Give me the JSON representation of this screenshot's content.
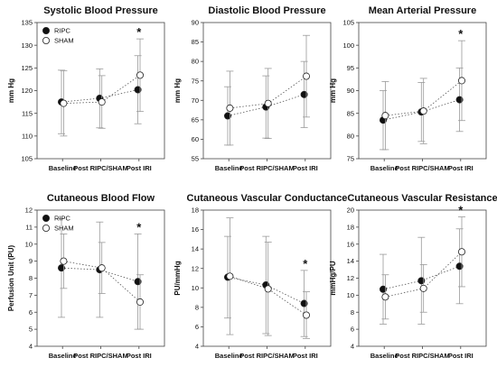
{
  "figure": {
    "categories": [
      "Baseline",
      "Post RIPC/SHAM",
      "Post IRI"
    ],
    "colors": {
      "RIPC": "#111111",
      "SHAM": "#ffffff",
      "errorbar": "#9a9a9a",
      "axis": "#444444"
    }
  },
  "chart_data": [
    {
      "type": "scatter",
      "title": "Systolic Blood Pressure",
      "xlabel": "",
      "ylabel": "mm Hg",
      "categories": [
        "Baseline",
        "Post RIPC/SHAM",
        "Post IRI"
      ],
      "ylim": [
        105,
        135
      ],
      "yticks": [
        105,
        110,
        115,
        120,
        125,
        130,
        135
      ],
      "legend": {
        "position": "top-left",
        "entries": [
          "RIPC",
          "SHAM"
        ]
      },
      "series": [
        {
          "name": "RIPC",
          "marker": "filled",
          "values": [
            117.5,
            118.3,
            120.2
          ],
          "errors": [
            7.0,
            6.5,
            7.5
          ]
        },
        {
          "name": "SHAM",
          "marker": "open",
          "values": [
            117.2,
            117.5,
            123.4
          ],
          "errors": [
            7.2,
            5.8,
            8.0
          ]
        }
      ],
      "annotations": [
        {
          "text": "*",
          "category": "Post IRI"
        }
      ]
    },
    {
      "type": "scatter",
      "title": "Diastolic Blood Pressure",
      "xlabel": "",
      "ylabel": "mm Hg",
      "categories": [
        "Baseline",
        "Post RIPC/SHAM",
        "Post IRI"
      ],
      "ylim": [
        55,
        90
      ],
      "yticks": [
        55,
        60,
        65,
        70,
        75,
        80,
        85,
        90
      ],
      "series": [
        {
          "name": "RIPC",
          "marker": "filled",
          "values": [
            66.0,
            68.3,
            71.5
          ],
          "errors": [
            7.5,
            8.0,
            8.5
          ]
        },
        {
          "name": "SHAM",
          "marker": "open",
          "values": [
            68.0,
            69.2,
            76.2
          ],
          "errors": [
            9.5,
            9.0,
            10.5
          ]
        }
      ]
    },
    {
      "type": "scatter",
      "title": "Mean Arterial Pressure",
      "xlabel": "",
      "ylabel": "mm Hg",
      "categories": [
        "Baseline",
        "Post RIPC/SHAM",
        "Post IRI"
      ],
      "ylim": [
        75,
        105
      ],
      "yticks": [
        75,
        80,
        85,
        90,
        95,
        100,
        105
      ],
      "series": [
        {
          "name": "RIPC",
          "marker": "filled",
          "values": [
            83.5,
            85.3,
            88.0
          ],
          "errors": [
            6.5,
            6.5,
            7.0
          ]
        },
        {
          "name": "SHAM",
          "marker": "open",
          "values": [
            84.5,
            85.5,
            92.2
          ],
          "errors": [
            7.5,
            7.2,
            8.8
          ]
        }
      ],
      "annotations": [
        {
          "text": "*",
          "category": "Post IRI"
        }
      ]
    },
    {
      "type": "scatter",
      "title": "Cutaneous Blood Flow",
      "xlabel": "",
      "ylabel": "Perfusion Unit (PU)",
      "categories": [
        "Baseline",
        "Post RIPC/SHAM",
        "Post IRI"
      ],
      "ylim": [
        4,
        12
      ],
      "yticks": [
        4,
        5,
        6,
        7,
        8,
        9,
        10,
        11,
        12
      ],
      "legend": {
        "position": "top-left",
        "entries": [
          "RIPC",
          "SHAM"
        ]
      },
      "series": [
        {
          "name": "RIPC",
          "marker": "filled",
          "values": [
            8.6,
            8.5,
            7.8
          ],
          "errors": [
            2.9,
            2.8,
            2.8
          ]
        },
        {
          "name": "SHAM",
          "marker": "open",
          "values": [
            9.0,
            8.6,
            6.6
          ],
          "errors": [
            1.6,
            1.5,
            1.6
          ]
        }
      ],
      "annotations": [
        {
          "text": "*",
          "category": "Post IRI"
        }
      ]
    },
    {
      "type": "scatter",
      "title": "Cutaneous Vascular Conductance",
      "xlabel": "",
      "ylabel": "PU/mmHg",
      "categories": [
        "Baseline",
        "Post RIPC/SHAM",
        "Post IRI"
      ],
      "ylim": [
        4,
        18
      ],
      "yticks": [
        4,
        6,
        8,
        10,
        12,
        14,
        16,
        18
      ],
      "series": [
        {
          "name": "RIPC",
          "marker": "filled",
          "values": [
            11.1,
            10.3,
            8.4
          ],
          "errors": [
            4.2,
            5.0,
            3.4
          ]
        },
        {
          "name": "SHAM",
          "marker": "open",
          "values": [
            11.2,
            9.9,
            7.2
          ],
          "errors": [
            6.0,
            4.8,
            2.4
          ]
        }
      ],
      "annotations": [
        {
          "text": "*",
          "category": "Post IRI"
        }
      ]
    },
    {
      "type": "scatter",
      "title": "Cutaneous Vascular Resistance",
      "xlabel": "",
      "ylabel": "mmHg/PU",
      "categories": [
        "Baseline",
        "Post RIPC/SHAM",
        "Post IRI"
      ],
      "ylim": [
        4,
        20
      ],
      "yticks": [
        4,
        6,
        8,
        10,
        12,
        14,
        16,
        18,
        20
      ],
      "series": [
        {
          "name": "RIPC",
          "marker": "filled",
          "values": [
            10.7,
            11.7,
            13.4
          ],
          "errors": [
            4.1,
            5.1,
            4.4
          ]
        },
        {
          "name": "SHAM",
          "marker": "open",
          "values": [
            9.8,
            10.8,
            15.1
          ],
          "errors": [
            2.6,
            2.8,
            4.1
          ]
        }
      ],
      "annotations": [
        {
          "text": "*",
          "category": "Post IRI"
        }
      ]
    }
  ]
}
